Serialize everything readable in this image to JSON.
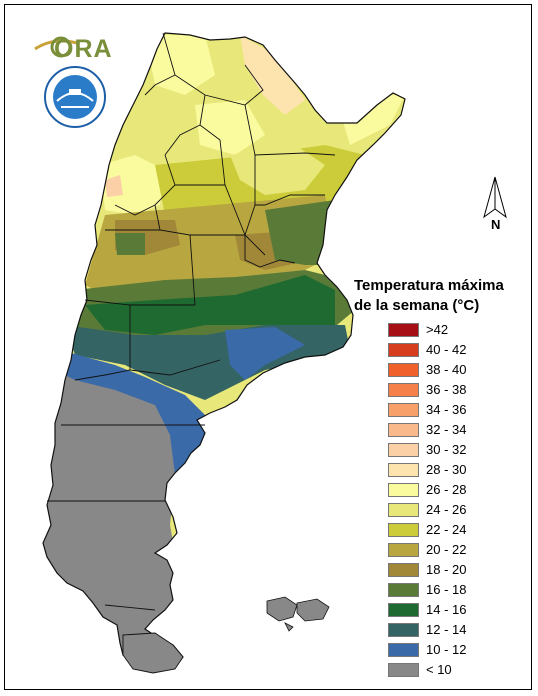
{
  "logos": {
    "ora_text": "ORA"
  },
  "legend": {
    "title_line1": "Temperatura máxima",
    "title_line2": "de la semana (°C)",
    "items": [
      {
        "label": ">42",
        "color": "#a50f15"
      },
      {
        "label": "40 - 42",
        "color": "#d63c1e"
      },
      {
        "label": "38 - 40",
        "color": "#f0602a"
      },
      {
        "label": "36 - 38",
        "color": "#f5804a"
      },
      {
        "label": "34 - 36",
        "color": "#f7a06a"
      },
      {
        "label": "32 - 34",
        "color": "#f9b98a"
      },
      {
        "label": "30 - 32",
        "color": "#fbd0a6"
      },
      {
        "label": "28 - 30",
        "color": "#fde3ae"
      },
      {
        "label": "26 - 28",
        "color": "#fafa9e"
      },
      {
        "label": "24 - 26",
        "color": "#e8e87a"
      },
      {
        "label": "22 - 24",
        "color": "#cccc3a"
      },
      {
        "label": "20 - 22",
        "color": "#b8a640"
      },
      {
        "label": "18 - 20",
        "color": "#a08838"
      },
      {
        "label": "16 - 18",
        "color": "#5a7a38"
      },
      {
        "label": "14 - 16",
        "color": "#1f6a30"
      },
      {
        "label": "12 - 14",
        "color": "#356464"
      },
      {
        "label": "10 - 12",
        "color": "#3a6aa8"
      },
      {
        "label": "< 10",
        "color": "#888888"
      }
    ]
  },
  "north_arrow": {
    "label": "N"
  }
}
